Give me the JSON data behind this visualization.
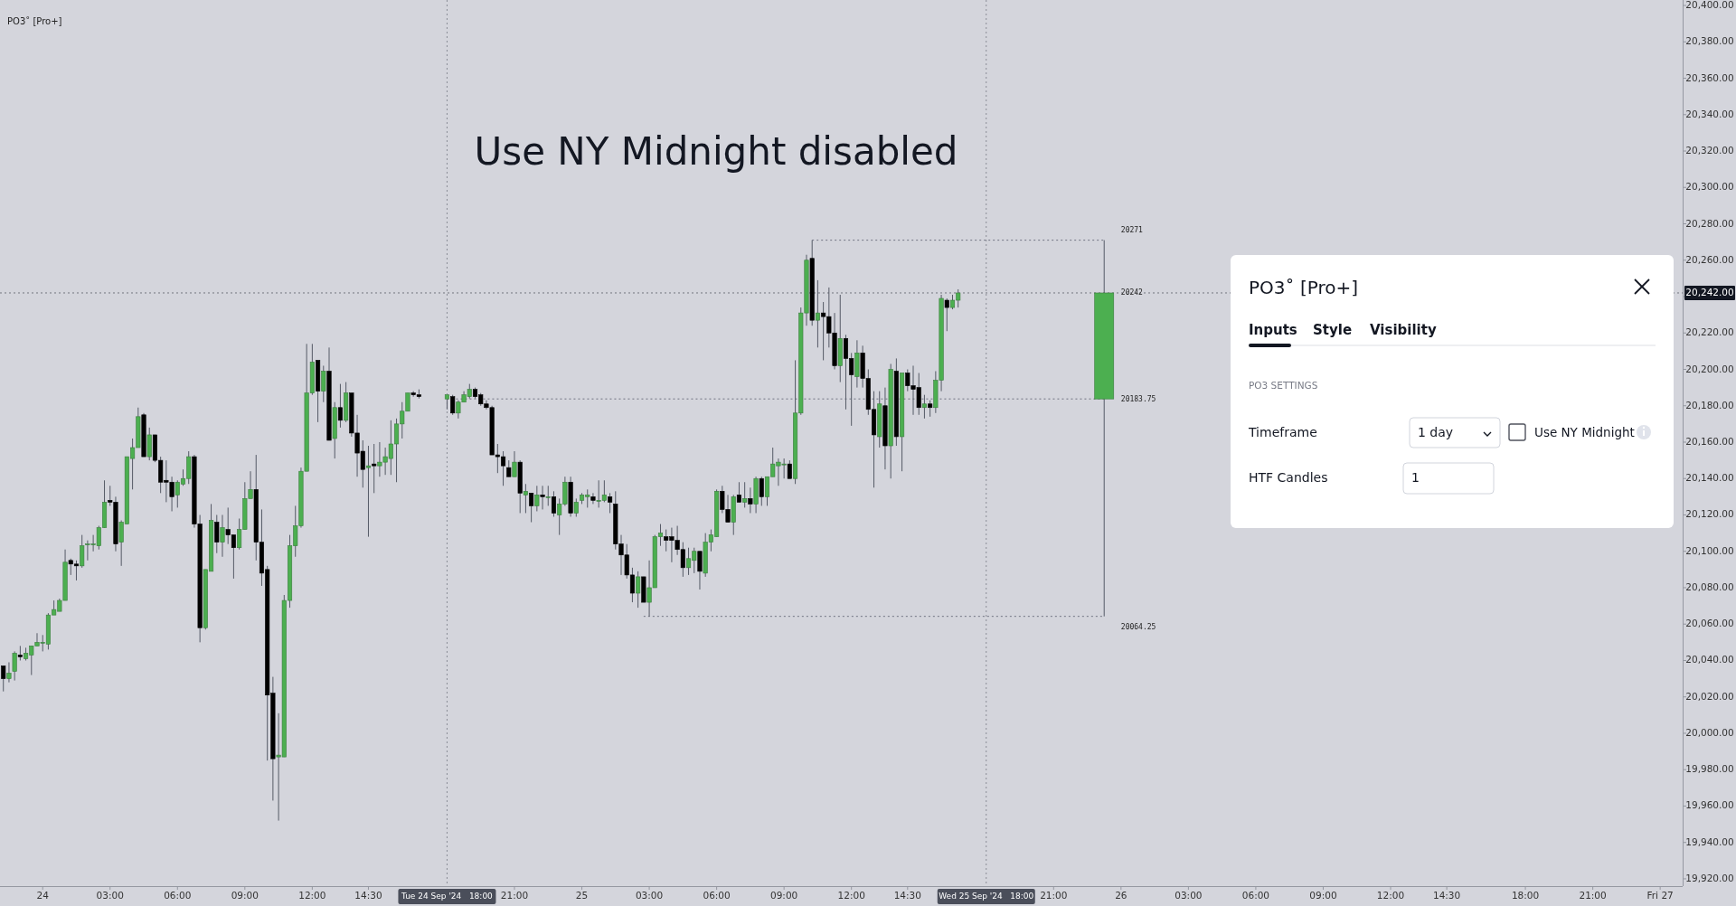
{
  "chart_data": {
    "type": "candlestick",
    "title": "Use NY Midnight disabled",
    "xlim": [
      "2024-09-23T22:06",
      "2024-09-27T01:00"
    ],
    "ylim": [
      19916,
      20403
    ],
    "xticks": [
      {
        "value": "2024-09-24T00:00",
        "label": "24"
      },
      {
        "value": "2024-09-24T03:00",
        "label": "03:00"
      },
      {
        "value": "2024-09-24T06:00",
        "label": "06:00"
      },
      {
        "value": "2024-09-24T09:00",
        "label": "09:00"
      },
      {
        "value": "2024-09-24T12:00",
        "label": "12:00"
      },
      {
        "value": "2024-09-24T14:30",
        "label": "14:30"
      },
      {
        "value": "2024-09-24T21:00",
        "label": "21:00"
      },
      {
        "value": "2024-09-25T00:00",
        "label": "25"
      },
      {
        "value": "2024-09-25T03:00",
        "label": "03:00"
      },
      {
        "value": "2024-09-25T06:00",
        "label": "06:00"
      },
      {
        "value": "2024-09-25T09:00",
        "label": "09:00"
      },
      {
        "value": "2024-09-25T12:00",
        "label": "12:00"
      },
      {
        "value": "2024-09-25T14:30",
        "label": "14:30"
      },
      {
        "value": "2024-09-25T21:00",
        "label": "21:00"
      },
      {
        "value": "2024-09-26T00:00",
        "label": "26"
      },
      {
        "value": "2024-09-26T03:00",
        "label": "03:00"
      },
      {
        "value": "2024-09-26T06:00",
        "label": "06:00"
      },
      {
        "value": "2024-09-26T09:00",
        "label": "09:00"
      },
      {
        "value": "2024-09-26T12:00",
        "label": "12:00"
      },
      {
        "value": "2024-09-26T14:30",
        "label": "14:30"
      },
      {
        "value": "2024-09-26T18:00",
        "label": "18:00"
      },
      {
        "value": "2024-09-26T21:00",
        "label": "21:00"
      },
      {
        "value": "2024-09-27T00:00",
        "label": "Fri 27"
      }
    ],
    "yticks": [
      {
        "value": 19920,
        "label": "19,920.00"
      },
      {
        "value": 19940,
        "label": "19,940.00"
      },
      {
        "value": 19960,
        "label": "19,960.00"
      },
      {
        "value": 19980,
        "label": "19,980.00"
      },
      {
        "value": 20000,
        "label": "20,000.00"
      },
      {
        "value": 20020,
        "label": "20,020.00"
      },
      {
        "value": 20040,
        "label": "20,040.00"
      },
      {
        "value": 20060,
        "label": "20,060.00"
      },
      {
        "value": 20080,
        "label": "20,080.00"
      },
      {
        "value": 20100,
        "label": "20,100.00"
      },
      {
        "value": 20120,
        "label": "20,120.00"
      },
      {
        "value": 20140,
        "label": "20,140.00"
      },
      {
        "value": 20160,
        "label": "20,160.00"
      },
      {
        "value": 20180,
        "label": "20,180.00"
      },
      {
        "value": 20200,
        "label": "20,200.00"
      },
      {
        "value": 20220,
        "label": "20,220.00"
      },
      {
        "value": 20240,
        "label": null
      },
      {
        "value": 20260,
        "label": "20,260.00"
      },
      {
        "value": 20280,
        "label": "20,280.00"
      },
      {
        "value": 20300,
        "label": "20,300.00"
      },
      {
        "value": 20320,
        "label": "20,320.00"
      },
      {
        "value": 20340,
        "label": "20,340.00"
      },
      {
        "value": 20360,
        "label": "20,360.00"
      },
      {
        "value": 20380,
        "label": "20,380.00"
      },
      {
        "value": 20400,
        "label": "20,400.00"
      }
    ],
    "series": [
      {
        "type": "line",
        "color": "#6f7280",
        "line_style": "dotted",
        "x": [
          "2024-09-25T10:15",
          "2024-09-25T23:15"
        ],
        "values": [
          20271,
          20271
        ]
      },
      {
        "type": "line",
        "color": "#6f7280",
        "line_style": "dotted",
        "x": [
          "2024-09-24T18:00",
          "2024-09-25T23:15"
        ],
        "values": [
          20183.75,
          20183.75
        ]
      },
      {
        "type": "line",
        "color": "#6f7280",
        "line_style": "dotted",
        "x": [
          "2024-09-25T02:45",
          "2024-09-25T23:15"
        ],
        "values": [
          20064.25,
          20064.25
        ]
      },
      {
        "x": [
          "2024-09-23T22:15",
          "2024-09-23T22:30",
          "2024-09-23T22:45",
          "2024-09-23T23:00",
          "2024-09-23T23:15",
          "2024-09-23T23:30",
          "2024-09-23T23:45",
          "2024-09-24T00:00",
          "2024-09-24T00:15",
          "2024-09-24T00:30",
          "2024-09-24T00:45",
          "2024-09-24T01:00",
          "2024-09-24T01:15",
          "2024-09-24T01:30",
          "2024-09-24T01:45",
          "2024-09-24T02:00",
          "2024-09-24T02:15",
          "2024-09-24T02:30",
          "2024-09-24T02:45",
          "2024-09-24T03:00",
          "2024-09-24T03:15",
          "2024-09-24T03:30",
          "2024-09-24T03:45",
          "2024-09-24T04:00",
          "2024-09-24T04:15",
          "2024-09-24T04:30",
          "2024-09-24T04:45",
          "2024-09-24T05:00",
          "2024-09-24T05:15",
          "2024-09-24T05:30",
          "2024-09-24T05:45",
          "2024-09-24T06:00",
          "2024-09-24T06:15",
          "2024-09-24T06:30",
          "2024-09-24T06:45",
          "2024-09-24T07:00",
          "2024-09-24T07:15",
          "2024-09-24T07:30",
          "2024-09-24T07:45",
          "2024-09-24T08:00",
          "2024-09-24T08:15",
          "2024-09-24T08:30",
          "2024-09-24T08:45",
          "2024-09-24T09:00",
          "2024-09-24T09:15",
          "2024-09-24T09:30",
          "2024-09-24T09:45",
          "2024-09-24T10:00",
          "2024-09-24T10:15",
          "2024-09-24T10:30",
          "2024-09-24T10:45",
          "2024-09-24T11:00",
          "2024-09-24T11:15",
          "2024-09-24T11:30",
          "2024-09-24T11:45",
          "2024-09-24T12:00",
          "2024-09-24T12:15",
          "2024-09-24T12:30",
          "2024-09-24T12:45",
          "2024-09-24T13:00",
          "2024-09-24T13:15",
          "2024-09-24T13:30",
          "2024-09-24T13:45",
          "2024-09-24T14:00",
          "2024-09-24T14:15",
          "2024-09-24T14:30",
          "2024-09-24T14:45",
          "2024-09-24T15:00",
          "2024-09-24T15:15",
          "2024-09-24T15:30",
          "2024-09-24T15:45",
          "2024-09-24T16:00",
          "2024-09-24T16:15",
          "2024-09-24T16:30",
          "2024-09-24T16:45",
          "2024-09-24T18:00",
          "2024-09-24T18:15",
          "2024-09-24T18:30",
          "2024-09-24T18:45",
          "2024-09-24T19:00",
          "2024-09-24T19:15",
          "2024-09-24T19:30",
          "2024-09-24T19:45",
          "2024-09-24T20:00",
          "2024-09-24T20:15",
          "2024-09-24T20:30",
          "2024-09-24T20:45",
          "2024-09-24T21:00",
          "2024-09-24T21:15",
          "2024-09-24T21:30",
          "2024-09-24T21:45",
          "2024-09-24T22:00",
          "2024-09-24T22:15",
          "2024-09-24T22:30",
          "2024-09-24T22:45",
          "2024-09-24T23:00",
          "2024-09-24T23:15",
          "2024-09-24T23:30",
          "2024-09-24T23:45",
          "2024-09-25T00:00",
          "2024-09-25T00:15",
          "2024-09-25T00:30",
          "2024-09-25T00:45",
          "2024-09-25T01:00",
          "2024-09-25T01:15",
          "2024-09-25T01:30",
          "2024-09-25T01:45",
          "2024-09-25T02:00",
          "2024-09-25T02:15",
          "2024-09-25T02:30",
          "2024-09-25T02:45",
          "2024-09-25T03:00",
          "2024-09-25T03:15",
          "2024-09-25T03:30",
          "2024-09-25T03:45",
          "2024-09-25T04:00",
          "2024-09-25T04:15",
          "2024-09-25T04:30",
          "2024-09-25T04:45",
          "2024-09-25T05:00",
          "2024-09-25T05:15",
          "2024-09-25T05:30",
          "2024-09-25T05:45",
          "2024-09-25T06:00",
          "2024-09-25T06:15",
          "2024-09-25T06:30",
          "2024-09-25T06:45",
          "2024-09-25T07:00",
          "2024-09-25T07:15",
          "2024-09-25T07:30",
          "2024-09-25T07:45",
          "2024-09-25T08:00",
          "2024-09-25T08:15",
          "2024-09-25T08:30",
          "2024-09-25T08:45",
          "2024-09-25T09:00",
          "2024-09-25T09:15",
          "2024-09-25T09:30",
          "2024-09-25T09:45",
          "2024-09-25T10:00",
          "2024-09-25T10:15",
          "2024-09-25T10:30",
          "2024-09-25T10:45",
          "2024-09-25T11:00",
          "2024-09-25T11:15",
          "2024-09-25T11:30",
          "2024-09-25T11:45",
          "2024-09-25T12:00",
          "2024-09-25T12:15",
          "2024-09-25T12:30",
          "2024-09-25T12:45",
          "2024-09-25T13:00",
          "2024-09-25T13:15",
          "2024-09-25T13:30",
          "2024-09-25T13:45",
          "2024-09-25T14:00",
          "2024-09-25T14:15",
          "2024-09-25T14:30",
          "2024-09-25T14:45",
          "2024-09-25T15:00",
          "2024-09-25T15:15",
          "2024-09-25T15:30",
          "2024-09-25T15:45",
          "2024-09-25T16:00",
          "2024-09-25T16:15",
          "2024-09-25T16:30",
          "2024-09-25T16:45"
        ],
        "colors": [
          "#000000",
          "#4caf50",
          "#4caf50",
          "#000000",
          "#4caf50",
          "#4caf50",
          "#4caf50",
          "#4caf50",
          "#4caf50",
          "#4caf50",
          "#4caf50",
          "#4caf50",
          "#000000",
          "#000000",
          "#4caf50",
          "#4caf50",
          "#4caf50",
          "#4caf50",
          "#4caf50",
          "#000000",
          "#000000",
          "#4caf50",
          "#4caf50",
          "#4caf50",
          "#4caf50",
          "#000000",
          "#4caf50",
          "#000000",
          "#000000",
          "#000000",
          "#000000",
          "#4caf50",
          "#4caf50",
          "#4caf50",
          "#000000",
          "#000000",
          "#4caf50",
          "#4caf50",
          "#000000",
          "#4caf50",
          "#000000",
          "#000000",
          "#4caf50",
          "#4caf50",
          "#4caf50",
          "#000000",
          "#000000",
          "#000000",
          "#000000",
          "#4caf50",
          "#4caf50",
          "#4caf50",
          "#4caf50",
          "#4caf50",
          "#4caf50",
          "#4caf50",
          "#000000",
          "#4caf50",
          "#000000",
          "#4caf50",
          "#000000",
          "#4caf50",
          "#000000",
          "#000000",
          "#000000",
          "#4caf50",
          "#000000",
          "#4caf50",
          "#4caf50",
          "#4caf50",
          "#4caf50",
          "#4caf50",
          "#4caf50",
          "#000000",
          "#000000",
          "#4caf50",
          "#000000",
          "#4caf50",
          "#4caf50",
          "#4caf50",
          "#000000",
          "#000000",
          "#000000",
          "#000000",
          "#000000",
          "#000000",
          "#000000",
          "#4caf50",
          "#000000",
          "#4caf50",
          "#000000",
          "#4caf50",
          "#000000",
          "#4caf50",
          "#000000",
          "#4caf50",
          "#4caf50",
          "#000000",
          "#4caf50",
          "#4caf50",
          "#4caf50",
          "#000000",
          "#4caf50",
          "#4caf50",
          "#000000",
          "#000000",
          "#000000",
          "#000000",
          "#000000",
          "#4caf50",
          "#000000",
          "#4caf50",
          "#4caf50",
          "#4caf50",
          "#000000",
          "#000000",
          "#000000",
          "#000000",
          "#4caf50",
          "#4caf50",
          "#000000",
          "#4caf50",
          "#4caf50",
          "#4caf50",
          "#000000",
          "#000000",
          "#4caf50",
          "#000000",
          "#4caf50",
          "#000000",
          "#4caf50",
          "#000000",
          "#4caf50",
          "#4caf50",
          "#4caf50",
          "#4caf50",
          "#000000",
          "#4caf50",
          "#4caf50",
          "#4caf50",
          "#000000",
          "#4caf50",
          "#000000",
          "#000000",
          "#000000",
          "#4caf50",
          "#000000",
          "#000000",
          "#4caf50",
          "#000000",
          "#000000",
          "#000000",
          "#4caf50",
          "#000000",
          "#4caf50",
          "#000000",
          "#4caf50",
          "#000000",
          "#000000",
          "#000000",
          "#4caf50",
          "#000000",
          "#4caf50",
          "#4caf50",
          "#000000",
          "#4caf50",
          "#4caf50"
        ],
        "ohlc": [
          [
            20037,
            20037,
            20023,
            20030
          ],
          [
            20030,
            20039,
            20028,
            20033
          ],
          [
            20034,
            20045,
            20029,
            20044
          ],
          [
            20043,
            20048,
            20040,
            20042
          ],
          [
            20041,
            20047,
            20040,
            20044
          ],
          [
            20043,
            20048,
            20032,
            20048
          ],
          [
            20048,
            20055,
            20048,
            20050
          ],
          [
            20050,
            20054,
            20045,
            20050
          ],
          [
            20049,
            20066,
            20046,
            20065
          ],
          [
            20065,
            20073,
            20065,
            20068
          ],
          [
            20067,
            20074,
            20067,
            20073
          ],
          [
            20073,
            20101,
            20073,
            20094
          ],
          [
            20095,
            20096,
            20087,
            20093
          ],
          [
            20093,
            20095,
            20084,
            20092
          ],
          [
            20092,
            20109,
            20091,
            20103
          ],
          [
            20104,
            20106,
            20095,
            20104
          ],
          [
            20104,
            20109,
            20100,
            20104
          ],
          [
            20103,
            20114,
            20101,
            20113
          ],
          [
            20113,
            20139,
            20113,
            20127
          ],
          [
            20128,
            20136,
            20125,
            20127
          ],
          [
            20127,
            20130,
            20100,
            20104
          ],
          [
            20105,
            20117,
            20092,
            20116
          ],
          [
            20115,
            20152,
            20115,
            20152
          ],
          [
            20151,
            20162,
            20134,
            20157
          ],
          [
            20157,
            20179,
            20157,
            20174
          ],
          [
            20175,
            20176,
            20152,
            20152
          ],
          [
            20152,
            20168,
            20150,
            20164
          ],
          [
            20164,
            20164,
            20149,
            20150
          ],
          [
            20150,
            20152,
            20132,
            20138
          ],
          [
            20139,
            20150,
            20127,
            20138
          ],
          [
            20138,
            20141,
            20122,
            20130
          ],
          [
            20131,
            20139,
            20124,
            20138
          ],
          [
            20137,
            20145,
            20136,
            20140
          ],
          [
            20140,
            20155,
            20137,
            20152
          ],
          [
            20152,
            20153,
            20113,
            20115
          ],
          [
            20115,
            20120,
            20050,
            20058
          ],
          [
            20058,
            20090,
            20057,
            20090
          ],
          [
            20089,
            20126,
            20089,
            20117
          ],
          [
            20116,
            20120,
            20099,
            20105
          ],
          [
            20105,
            20120,
            20097,
            20113
          ],
          [
            20112,
            20124,
            20104,
            20109
          ],
          [
            20109,
            20109,
            20085,
            20102
          ],
          [
            20102,
            20118,
            20101,
            20112
          ],
          [
            20112,
            20138,
            20112,
            20129
          ],
          [
            20129,
            20144,
            20129,
            20134
          ],
          [
            20134,
            20153,
            20095,
            20105
          ],
          [
            20105,
            20123,
            20081,
            20088
          ],
          [
            20090,
            20092,
            19985,
            20021
          ],
          [
            20022,
            20031,
            19963,
            19986
          ],
          [
            19987,
            20011,
            19952,
            19988
          ],
          [
            19987,
            20076,
            19987,
            20073
          ],
          [
            20073,
            20109,
            20069,
            20103
          ],
          [
            20103,
            20125,
            20097,
            20114
          ],
          [
            20114,
            20146,
            20113,
            20144
          ],
          [
            20144,
            20214,
            20144,
            20187
          ],
          [
            20187,
            20214,
            20186,
            20204
          ],
          [
            20205,
            20205,
            20171,
            20188
          ],
          [
            20188,
            20202,
            20182,
            20199
          ],
          [
            20199,
            20212,
            20161,
            20161
          ],
          [
            20162,
            20182,
            20151,
            20179
          ],
          [
            20179,
            20192,
            20168,
            20172
          ],
          [
            20172,
            20193,
            20171,
            20187
          ],
          [
            20187,
            20187,
            20163,
            20165
          ],
          [
            20165,
            20175,
            20141,
            20154
          ],
          [
            20155,
            20161,
            20135,
            20145
          ],
          [
            20146,
            20158,
            20108,
            20147
          ],
          [
            20148,
            20159,
            20132,
            20147
          ],
          [
            20147,
            20160,
            20141,
            20149
          ],
          [
            20149,
            20157,
            20142,
            20152
          ],
          [
            20151,
            20172,
            20142,
            20159
          ],
          [
            20159,
            20173,
            20138,
            20170
          ],
          [
            20170,
            20182,
            20162,
            20177
          ],
          [
            20177,
            20187,
            20177,
            20187
          ],
          [
            20187,
            20188,
            20185,
            20186
          ],
          [
            20186,
            20189,
            20184,
            20185
          ],
          [
            20183.75,
            20186,
            20178,
            20186
          ],
          [
            20185,
            20186,
            20175,
            20176
          ],
          [
            20176,
            20183,
            20173,
            20182
          ],
          [
            20182,
            20188,
            20182,
            20186
          ],
          [
            20185,
            20192,
            20184,
            20189
          ],
          [
            20189,
            20190,
            20184,
            20185
          ],
          [
            20186,
            20187,
            20180,
            20181
          ],
          [
            20181,
            20183,
            20178,
            20179
          ],
          [
            20179,
            20180,
            20153,
            20153
          ],
          [
            20153,
            20159,
            20143,
            20152
          ],
          [
            20152,
            20155,
            20136,
            20147
          ],
          [
            20146,
            20150,
            20141,
            20141
          ],
          [
            20141,
            20155,
            20141,
            20149
          ],
          [
            20149,
            20150,
            20121,
            20132
          ],
          [
            20131,
            20137,
            20121,
            20133
          ],
          [
            20132,
            20132,
            20116,
            20125
          ],
          [
            20125,
            20136,
            20122,
            20131
          ],
          [
            20131,
            20136,
            20123,
            20130
          ],
          [
            20130,
            20136,
            20125,
            20130
          ],
          [
            20130,
            20133,
            20119,
            20121
          ],
          [
            20120,
            20129,
            20109,
            20126
          ],
          [
            20126,
            20141,
            20125,
            20138
          ],
          [
            20138,
            20141,
            20119,
            20121
          ],
          [
            20121,
            20129,
            20119,
            20127
          ],
          [
            20128,
            20132,
            20126,
            20131
          ],
          [
            20130,
            20134,
            20124,
            20131
          ],
          [
            20130,
            20132,
            20126,
            20128
          ],
          [
            20128,
            20139,
            20124,
            20128
          ],
          [
            20128,
            20139,
            20127,
            20131
          ],
          [
            20130,
            20132,
            20121,
            20127
          ],
          [
            20126,
            20133,
            20101,
            20104
          ],
          [
            20104,
            20109,
            20087,
            20098
          ],
          [
            20098,
            20104,
            20085,
            20087
          ],
          [
            20087,
            20091,
            20072,
            20077
          ],
          [
            20077,
            20089,
            20069,
            20086
          ],
          [
            20086,
            20086,
            20072,
            20072
          ],
          [
            20072,
            20095,
            20064.25,
            20080
          ],
          [
            20080,
            20109,
            20080,
            20108
          ],
          [
            20108,
            20115,
            20103,
            20110
          ],
          [
            20108,
            20112,
            20100,
            20106
          ],
          [
            20108,
            20113,
            20094,
            20106
          ],
          [
            20106,
            20114,
            20098,
            20101
          ],
          [
            20101,
            20105,
            20086,
            20091
          ],
          [
            20091,
            20102,
            20087,
            20096
          ],
          [
            20095,
            20102,
            20088,
            20100
          ],
          [
            20100,
            20100,
            20079,
            20089
          ],
          [
            20088,
            20110,
            20086,
            20105
          ],
          [
            20105,
            20112,
            20100,
            20109
          ],
          [
            20108,
            20134,
            20108,
            20133
          ],
          [
            20133,
            20136,
            20121,
            20123
          ],
          [
            20123,
            20131,
            20116,
            20116
          ],
          [
            20116,
            20131,
            20109,
            20130
          ],
          [
            20131,
            20138,
            20127,
            20127
          ],
          [
            20127,
            20138,
            20124,
            20129
          ],
          [
            20129,
            20135,
            20121,
            20126
          ],
          [
            20126,
            20141,
            20121,
            20140
          ],
          [
            20140,
            20141,
            20125,
            20130
          ],
          [
            20130,
            20141,
            20125,
            20141
          ],
          [
            20141,
            20157,
            20141,
            20148
          ],
          [
            20147,
            20151,
            20136,
            20149
          ],
          [
            20148,
            20151,
            20140,
            20148
          ],
          [
            20148,
            20150,
            20140,
            20140
          ],
          [
            20140,
            20205,
            20137,
            20176
          ],
          [
            20176,
            20234,
            20175,
            20231
          ],
          [
            20231,
            20263,
            20224,
            20260
          ],
          [
            20261,
            20271,
            20224,
            20227
          ],
          [
            20227,
            20249,
            20212,
            20231
          ],
          [
            20231,
            20237,
            20205,
            20229
          ],
          [
            20229,
            20245,
            20212,
            20220
          ],
          [
            20220,
            20231,
            20200,
            20202
          ],
          [
            20202,
            20241,
            20193,
            20217
          ],
          [
            20217,
            20219,
            20178,
            20206
          ],
          [
            20206,
            20209,
            20169,
            20197
          ],
          [
            20196,
            20216,
            20190,
            20209
          ],
          [
            20209,
            20213,
            20190,
            20195
          ],
          [
            20195,
            20200,
            20175,
            20178
          ],
          [
            20178,
            20188,
            20135,
            20164
          ],
          [
            20163,
            20188,
            20157,
            20181
          ],
          [
            20180,
            20190,
            20145,
            20158
          ],
          [
            20158,
            20203,
            20140,
            20200
          ],
          [
            20199,
            20206,
            20158,
            20163
          ],
          [
            20163,
            20198,
            20144,
            20198
          ],
          [
            20198,
            20200,
            20188,
            20191
          ],
          [
            20191,
            20202,
            20175,
            20189
          ],
          [
            20190,
            20198,
            20175,
            20179
          ],
          [
            20179,
            20186,
            20173,
            20181
          ],
          [
            20181,
            20183,
            20174,
            20179
          ],
          [
            20179,
            20199,
            20176,
            20194
          ],
          [
            20194,
            20241,
            20188,
            20239
          ],
          [
            20238,
            20239,
            20221,
            20234
          ],
          [
            20234,
            20241,
            20233,
            20238
          ],
          [
            20238,
            20244,
            20234,
            20242
          ]
        ]
      },
      {
        "color": "#4caf50",
        "x": [
          "2024-09-25T23:15"
        ],
        "ohlc": [
          [
            20183.75,
            20271,
            20064.25,
            20242
          ]
        ]
      }
    ],
    "ref_lines": [
      {
        "axis": "x",
        "value": "2024-09-24T18:00",
        "label": "Tue 24 Sep '24   18:00",
        "line_style": "dotted",
        "color": "#8a8d96"
      },
      {
        "axis": "x",
        "value": "2024-09-25T18:00",
        "label": "Wed 25 Sep '24   18:00",
        "line_style": "dotted",
        "color": "#8a8d96"
      },
      {
        "axis": "y",
        "value": 20242,
        "label": "20,242.00",
        "line_style": "dotted",
        "color": "#131722"
      }
    ],
    "annotations": [
      "20271",
      "20242",
      "20183.75",
      "20064.25",
      "PO3˚ [Pro+]",
      "PO3˚ [Pro+]",
      "Inputs",
      "Style",
      "Visibility",
      "PO3 SETTINGS",
      "Timeframe",
      "1 day",
      "Use NY Midnight",
      "HTF Candles",
      "1"
    ]
  }
}
